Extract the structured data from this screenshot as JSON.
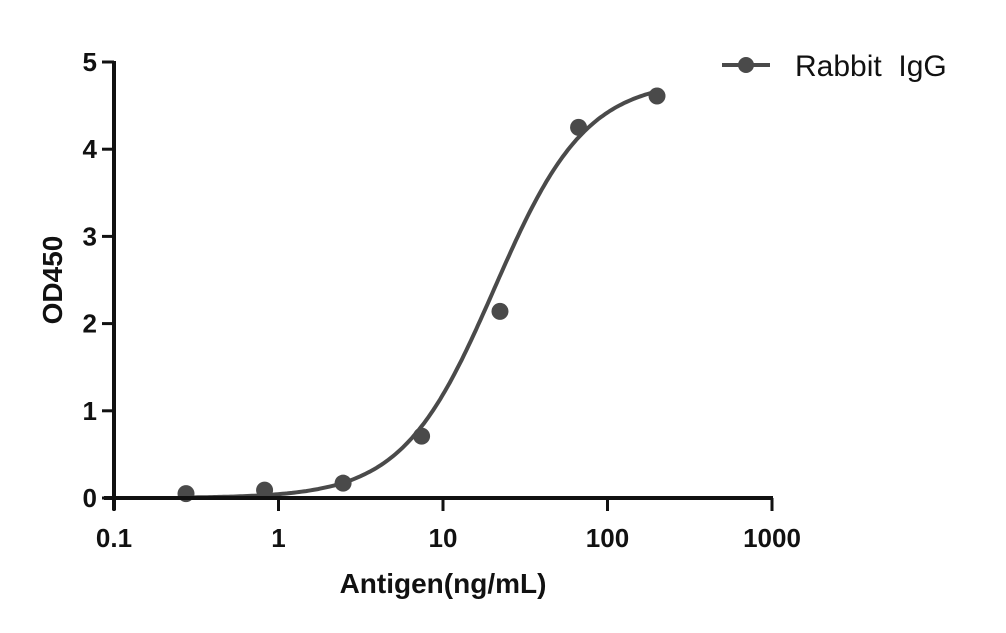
{
  "chart_data": {
    "type": "scatter",
    "title": "",
    "xlabel": "Antigen(ng/mL)",
    "ylabel": "OD450",
    "xscale": "log",
    "xlim": [
      0.1,
      1000
    ],
    "ylim": [
      0,
      5
    ],
    "xticks": [
      0.1,
      1,
      10,
      100,
      1000
    ],
    "xtick_labels": [
      "0.1",
      "1",
      "10",
      "100",
      "1000"
    ],
    "yticks": [
      0,
      1,
      2,
      3,
      4,
      5
    ],
    "ytick_labels": [
      "0",
      "1",
      "2",
      "3",
      "4",
      "5"
    ],
    "grid": false,
    "legend_position": "top-right",
    "series": [
      {
        "name": "Rabbit  IgG",
        "color": "#4a4a4a",
        "marker": "circle",
        "fit": "4PL sigmoid",
        "x": [
          0.274,
          0.823,
          2.47,
          7.41,
          22.2,
          66.7,
          200
        ],
        "y": [
          0.05,
          0.09,
          0.17,
          0.71,
          2.14,
          4.25,
          4.61
        ]
      }
    ],
    "fit_params": {
      "bottom": 0.0,
      "top": 4.8,
      "ec50": 20.5,
      "hill": 1.55
    }
  },
  "legend": {
    "label": "Rabbit  IgG"
  },
  "axes": {
    "x_title": "Antigen(ng/mL)",
    "y_title": "OD450"
  }
}
